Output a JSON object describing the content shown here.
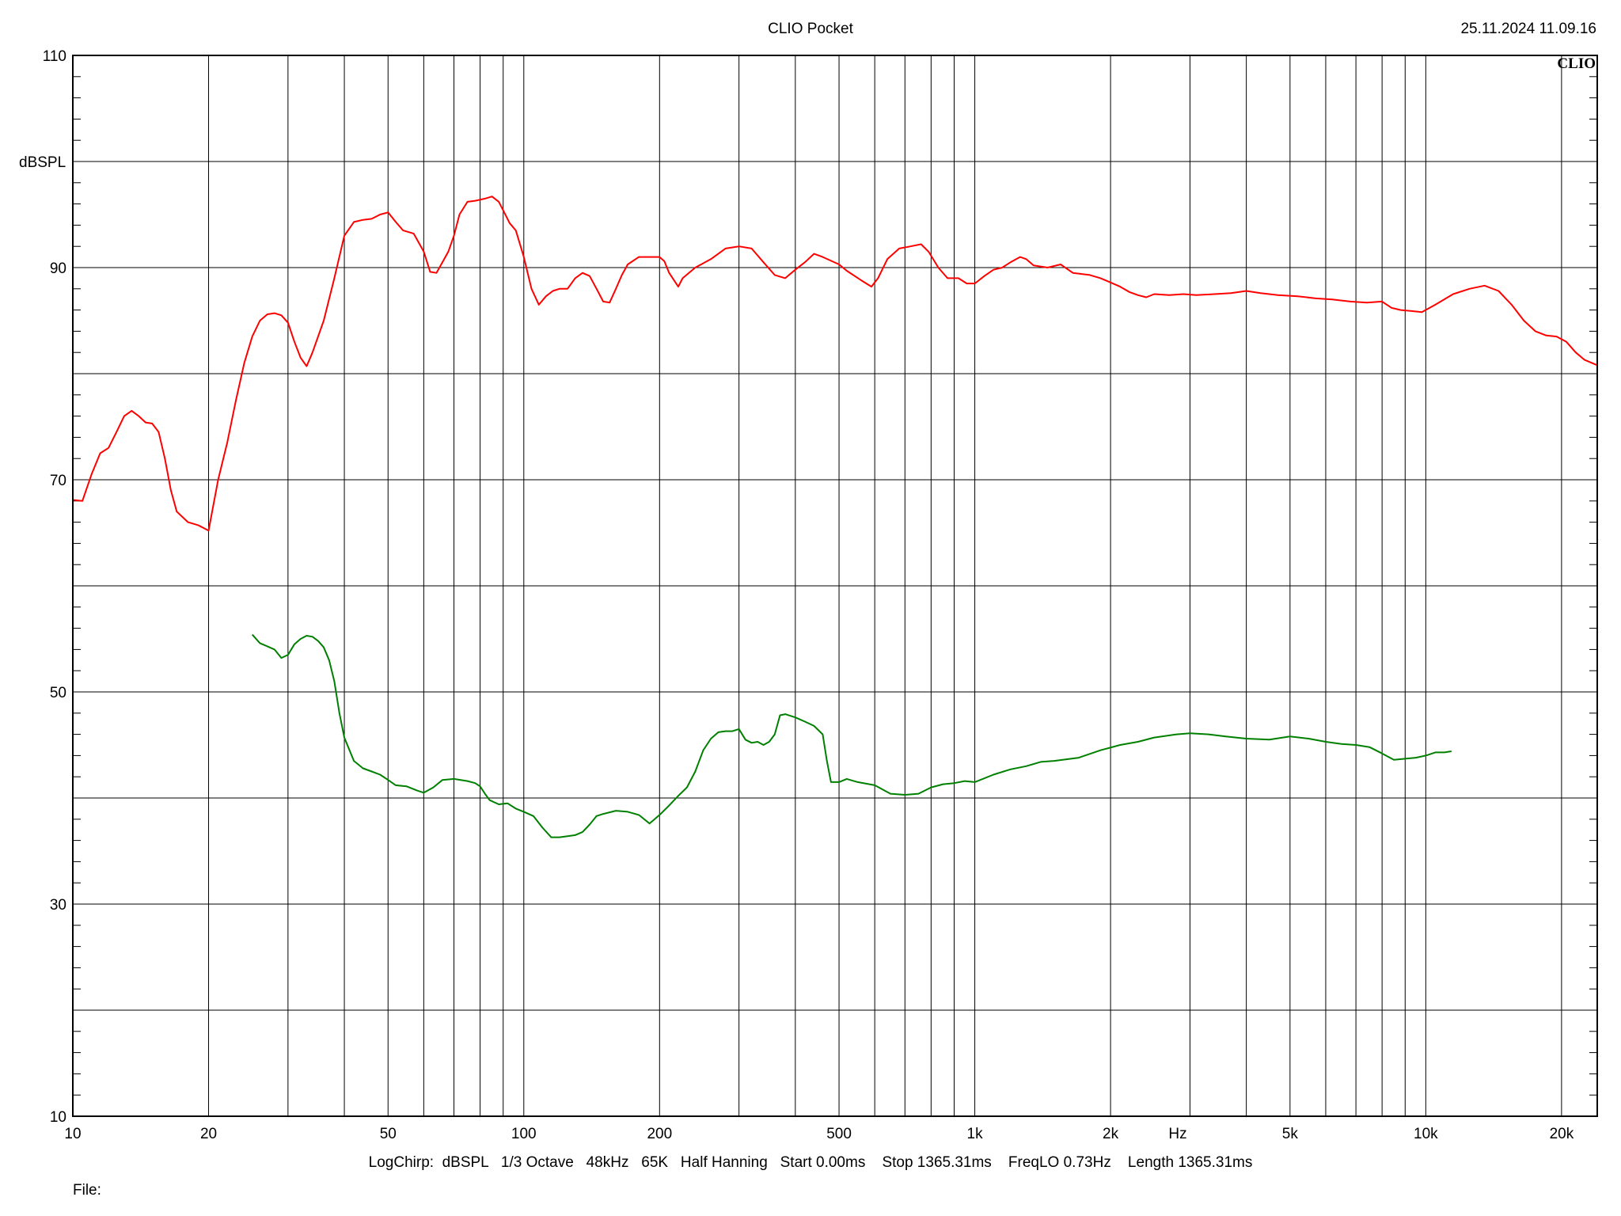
{
  "header": {
    "title": "CLIO Pocket",
    "timestamp": "25.11.2024 11.09.16",
    "brand": "CLIO"
  },
  "footer": {
    "settings": "LogChirp:  dBSPL   1/3 Octave   48kHz   65K   Half Hanning   Start 0.00ms    Stop 1365.31ms    FreqLO 0.73Hz    Length 1365.31ms",
    "file_label": "File:"
  },
  "chart_data": {
    "type": "line",
    "title": "",
    "xlabel": "Hz",
    "ylabel": "dBSPL",
    "xscale": "log",
    "xlim": [
      10,
      24000
    ],
    "ylim": [
      10,
      110
    ],
    "grid": true,
    "x_major_gridlines": [
      20,
      30,
      40,
      50,
      60,
      70,
      80,
      90,
      100,
      200,
      300,
      400,
      500,
      600,
      700,
      800,
      900,
      1000,
      2000,
      3000,
      4000,
      5000,
      6000,
      7000,
      8000,
      9000,
      10000,
      20000
    ],
    "x_ticks": [
      {
        "value": 10,
        "label": "10"
      },
      {
        "value": 20,
        "label": "20"
      },
      {
        "value": 50,
        "label": "50"
      },
      {
        "value": 100,
        "label": "100"
      },
      {
        "value": 200,
        "label": "200"
      },
      {
        "value": 500,
        "label": "500"
      },
      {
        "value": 1000,
        "label": "1k"
      },
      {
        "value": 2000,
        "label": "2k"
      },
      {
        "value": 5000,
        "label": "5k"
      },
      {
        "value": 10000,
        "label": "10k"
      },
      {
        "value": 20000,
        "label": "20k"
      }
    ],
    "y_ticks": [
      {
        "value": 110,
        "label": "110"
      },
      {
        "value": 90,
        "label": "90"
      },
      {
        "value": 70,
        "label": "70"
      },
      {
        "value": 50,
        "label": "50"
      },
      {
        "value": 30,
        "label": "30"
      },
      {
        "value": 10,
        "label": "10"
      }
    ],
    "y_gridlines": [
      20,
      30,
      40,
      50,
      60,
      70,
      80,
      90,
      100
    ],
    "colors": {
      "frame": "#000000",
      "grid": "#000000"
    },
    "series": [
      {
        "color": "#ff0000",
        "points": [
          [
            10,
            68.1
          ],
          [
            10.5,
            68.0
          ],
          [
            11,
            70.5
          ],
          [
            11.5,
            72.5
          ],
          [
            12,
            73.0
          ],
          [
            12.5,
            74.5
          ],
          [
            13,
            76.0
          ],
          [
            13.5,
            76.5
          ],
          [
            14,
            76.0
          ],
          [
            14.5,
            75.4
          ],
          [
            15,
            75.3
          ],
          [
            15.5,
            74.5
          ],
          [
            16,
            72.0
          ],
          [
            16.5,
            69.0
          ],
          [
            17,
            67.0
          ],
          [
            18,
            66.0
          ],
          [
            19,
            65.7
          ],
          [
            20,
            65.2
          ],
          [
            21,
            70.0
          ],
          [
            22,
            73.5
          ],
          [
            23,
            77.5
          ],
          [
            24,
            81.0
          ],
          [
            25,
            83.5
          ],
          [
            26,
            85.0
          ],
          [
            27,
            85.6
          ],
          [
            28,
            85.7
          ],
          [
            29,
            85.5
          ],
          [
            30,
            84.8
          ],
          [
            31,
            83.0
          ],
          [
            32,
            81.5
          ],
          [
            33,
            80.7
          ],
          [
            34,
            82.0
          ],
          [
            36,
            85.0
          ],
          [
            38,
            89.0
          ],
          [
            40,
            93.0
          ],
          [
            42,
            94.3
          ],
          [
            44,
            94.5
          ],
          [
            46,
            94.6
          ],
          [
            48,
            95.0
          ],
          [
            50,
            95.2
          ],
          [
            52,
            94.3
          ],
          [
            54,
            93.5
          ],
          [
            57,
            93.2
          ],
          [
            60,
            91.5
          ],
          [
            62,
            89.6
          ],
          [
            64,
            89.5
          ],
          [
            66,
            90.5
          ],
          [
            68,
            91.5
          ],
          [
            70,
            93.0
          ],
          [
            72,
            95.0
          ],
          [
            75,
            96.2
          ],
          [
            78,
            96.3
          ],
          [
            82,
            96.5
          ],
          [
            85,
            96.7
          ],
          [
            88,
            96.2
          ],
          [
            90,
            95.4
          ],
          [
            93,
            94.2
          ],
          [
            96,
            93.5
          ],
          [
            100,
            91.0
          ],
          [
            104,
            88.0
          ],
          [
            108,
            86.5
          ],
          [
            112,
            87.3
          ],
          [
            116,
            87.8
          ],
          [
            120,
            88.0
          ],
          [
            125,
            88.0
          ],
          [
            130,
            89.0
          ],
          [
            135,
            89.5
          ],
          [
            140,
            89.2
          ],
          [
            145,
            88.0
          ],
          [
            150,
            86.8
          ],
          [
            155,
            86.7
          ],
          [
            160,
            88.0
          ],
          [
            165,
            89.3
          ],
          [
            170,
            90.3
          ],
          [
            180,
            91.0
          ],
          [
            190,
            91.0
          ],
          [
            200,
            91.0
          ],
          [
            205,
            90.6
          ],
          [
            210,
            89.5
          ],
          [
            220,
            88.2
          ],
          [
            225,
            89.0
          ],
          [
            240,
            90.0
          ],
          [
            260,
            90.8
          ],
          [
            280,
            91.8
          ],
          [
            300,
            92.0
          ],
          [
            320,
            91.8
          ],
          [
            340,
            90.5
          ],
          [
            360,
            89.3
          ],
          [
            380,
            89.0
          ],
          [
            400,
            89.8
          ],
          [
            420,
            90.5
          ],
          [
            440,
            91.3
          ],
          [
            460,
            91.0
          ],
          [
            500,
            90.3
          ],
          [
            520,
            89.7
          ],
          [
            560,
            88.8
          ],
          [
            590,
            88.2
          ],
          [
            610,
            89.0
          ],
          [
            640,
            90.8
          ],
          [
            680,
            91.8
          ],
          [
            720,
            92.0
          ],
          [
            760,
            92.2
          ],
          [
            790,
            91.5
          ],
          [
            830,
            90.0
          ],
          [
            870,
            89.0
          ],
          [
            920,
            89.0
          ],
          [
            960,
            88.5
          ],
          [
            1000,
            88.5
          ],
          [
            1050,
            89.2
          ],
          [
            1100,
            89.8
          ],
          [
            1150,
            90.0
          ],
          [
            1200,
            90.5
          ],
          [
            1260,
            91.0
          ],
          [
            1300,
            90.8
          ],
          [
            1350,
            90.2
          ],
          [
            1450,
            90.0
          ],
          [
            1550,
            90.3
          ],
          [
            1650,
            89.5
          ],
          [
            1800,
            89.3
          ],
          [
            1900,
            89.0
          ],
          [
            2000,
            88.6
          ],
          [
            2100,
            88.2
          ],
          [
            2200,
            87.7
          ],
          [
            2300,
            87.4
          ],
          [
            2400,
            87.2
          ],
          [
            2500,
            87.5
          ],
          [
            2700,
            87.4
          ],
          [
            2900,
            87.5
          ],
          [
            3100,
            87.4
          ],
          [
            3400,
            87.5
          ],
          [
            3700,
            87.6
          ],
          [
            4000,
            87.8
          ],
          [
            4300,
            87.6
          ],
          [
            4700,
            87.4
          ],
          [
            5200,
            87.3
          ],
          [
            5700,
            87.1
          ],
          [
            6200,
            87.0
          ],
          [
            6800,
            86.8
          ],
          [
            7400,
            86.7
          ],
          [
            8000,
            86.8
          ],
          [
            8400,
            86.2
          ],
          [
            8800,
            86.0
          ],
          [
            9300,
            85.9
          ],
          [
            9800,
            85.8
          ],
          [
            10500,
            86.5
          ],
          [
            11500,
            87.5
          ],
          [
            12500,
            88.0
          ],
          [
            13500,
            88.3
          ],
          [
            14500,
            87.8
          ],
          [
            15500,
            86.5
          ],
          [
            16500,
            85.0
          ],
          [
            17500,
            84.0
          ],
          [
            18500,
            83.6
          ],
          [
            19500,
            83.5
          ],
          [
            20500,
            83.0
          ],
          [
            21500,
            82.0
          ],
          [
            22500,
            81.3
          ],
          [
            24000,
            80.8
          ]
        ]
      },
      {
        "color": "#008000",
        "points": [
          [
            25,
            55.4
          ],
          [
            26,
            54.6
          ],
          [
            27,
            54.3
          ],
          [
            28,
            54.0
          ],
          [
            29,
            53.2
          ],
          [
            30,
            53.5
          ],
          [
            31,
            54.5
          ],
          [
            32,
            55.0
          ],
          [
            33,
            55.3
          ],
          [
            34,
            55.2
          ],
          [
            35,
            54.8
          ],
          [
            36,
            54.2
          ],
          [
            37,
            53.0
          ],
          [
            38,
            51.0
          ],
          [
            39,
            48.0
          ],
          [
            40,
            45.7
          ],
          [
            42,
            43.5
          ],
          [
            44,
            42.8
          ],
          [
            46,
            42.5
          ],
          [
            48,
            42.2
          ],
          [
            50,
            41.7
          ],
          [
            52,
            41.2
          ],
          [
            55,
            41.1
          ],
          [
            58,
            40.7
          ],
          [
            60,
            40.5
          ],
          [
            63,
            41.0
          ],
          [
            66,
            41.7
          ],
          [
            70,
            41.8
          ],
          [
            75,
            41.6
          ],
          [
            78,
            41.4
          ],
          [
            80,
            41.1
          ],
          [
            82,
            40.4
          ],
          [
            84,
            39.8
          ],
          [
            88,
            39.4
          ],
          [
            92,
            39.5
          ],
          [
            96,
            39.0
          ],
          [
            100,
            38.7
          ],
          [
            105,
            38.3
          ],
          [
            110,
            37.2
          ],
          [
            115,
            36.3
          ],
          [
            120,
            36.3
          ],
          [
            125,
            36.4
          ],
          [
            130,
            36.5
          ],
          [
            135,
            36.8
          ],
          [
            140,
            37.5
          ],
          [
            145,
            38.3
          ],
          [
            150,
            38.5
          ],
          [
            160,
            38.8
          ],
          [
            170,
            38.7
          ],
          [
            180,
            38.4
          ],
          [
            190,
            37.6
          ],
          [
            200,
            38.4
          ],
          [
            210,
            39.3
          ],
          [
            220,
            40.2
          ],
          [
            230,
            41.0
          ],
          [
            240,
            42.5
          ],
          [
            250,
            44.5
          ],
          [
            260,
            45.6
          ],
          [
            270,
            46.2
          ],
          [
            280,
            46.3
          ],
          [
            290,
            46.3
          ],
          [
            300,
            46.5
          ],
          [
            310,
            45.5
          ],
          [
            320,
            45.2
          ],
          [
            330,
            45.3
          ],
          [
            340,
            45.0
          ],
          [
            350,
            45.3
          ],
          [
            360,
            46.0
          ],
          [
            370,
            47.8
          ],
          [
            380,
            47.9
          ],
          [
            400,
            47.6
          ],
          [
            420,
            47.2
          ],
          [
            440,
            46.8
          ],
          [
            460,
            46.0
          ],
          [
            470,
            43.5
          ],
          [
            480,
            41.5
          ],
          [
            500,
            41.5
          ],
          [
            520,
            41.8
          ],
          [
            550,
            41.5
          ],
          [
            600,
            41.2
          ],
          [
            650,
            40.4
          ],
          [
            700,
            40.3
          ],
          [
            750,
            40.4
          ],
          [
            800,
            41.0
          ],
          [
            850,
            41.3
          ],
          [
            900,
            41.4
          ],
          [
            950,
            41.6
          ],
          [
            1000,
            41.5
          ],
          [
            1100,
            42.2
          ],
          [
            1200,
            42.7
          ],
          [
            1300,
            43.0
          ],
          [
            1400,
            43.4
          ],
          [
            1500,
            43.5
          ],
          [
            1700,
            43.8
          ],
          [
            1900,
            44.5
          ],
          [
            2100,
            45.0
          ],
          [
            2300,
            45.3
          ],
          [
            2500,
            45.7
          ],
          [
            2800,
            46.0
          ],
          [
            3000,
            46.1
          ],
          [
            3300,
            46.0
          ],
          [
            3600,
            45.8
          ],
          [
            4000,
            45.6
          ],
          [
            4500,
            45.5
          ],
          [
            5000,
            45.8
          ],
          [
            5500,
            45.6
          ],
          [
            6000,
            45.3
          ],
          [
            6500,
            45.1
          ],
          [
            7000,
            45.0
          ],
          [
            7500,
            44.8
          ],
          [
            8000,
            44.2
          ],
          [
            8500,
            43.6
          ],
          [
            9000,
            43.7
          ],
          [
            9500,
            43.8
          ],
          [
            10000,
            44.0
          ],
          [
            10500,
            44.3
          ],
          [
            11000,
            44.3
          ],
          [
            11400,
            44.4
          ]
        ]
      }
    ]
  }
}
